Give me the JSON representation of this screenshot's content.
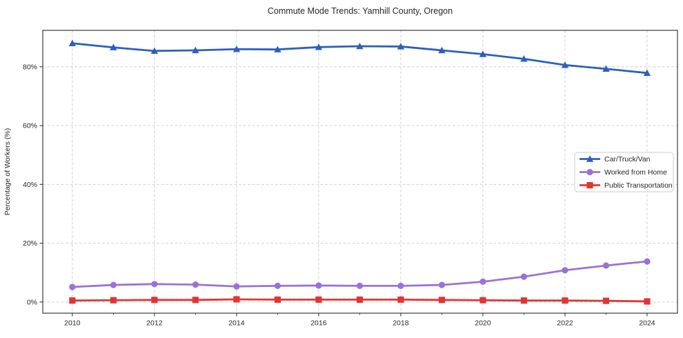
{
  "chart_data": {
    "type": "line",
    "title": "Commute Mode Trends: Yamhill County, Oregon",
    "xlabel": "",
    "ylabel": "Percentage of Workers (%)",
    "x": [
      2010,
      2011,
      2012,
      2013,
      2014,
      2015,
      2016,
      2017,
      2018,
      2019,
      2020,
      2021,
      2022,
      2023,
      2024
    ],
    "series": [
      {
        "name": "Car/Truck/Van",
        "color": "#2d5fbe",
        "marker": "triangle",
        "values": [
          88.0,
          86.6,
          85.4,
          85.6,
          86.0,
          85.9,
          86.7,
          87.0,
          86.9,
          85.6,
          84.3,
          82.7,
          80.6,
          79.3,
          77.9
        ]
      },
      {
        "name": "Worked from Home",
        "color": "#9873d6",
        "marker": "circle",
        "values": [
          5.1,
          5.8,
          6.1,
          5.9,
          5.3,
          5.5,
          5.6,
          5.5,
          5.5,
          5.8,
          6.9,
          8.6,
          10.8,
          12.4,
          13.8
        ]
      },
      {
        "name": "Public Transportation",
        "color": "#e23434",
        "marker": "square",
        "values": [
          0.5,
          0.6,
          0.7,
          0.7,
          0.9,
          0.8,
          0.8,
          0.8,
          0.8,
          0.7,
          0.6,
          0.5,
          0.5,
          0.4,
          0.2
        ]
      }
    ],
    "x_ticks": {
      "major": [
        2010,
        2012,
        2014,
        2016,
        2018,
        2020,
        2022,
        2024
      ],
      "labels": [
        "2010",
        "2012",
        "2014",
        "2016",
        "2018",
        "2020",
        "2022",
        "2024"
      ],
      "minor": [
        2011,
        2013,
        2015,
        2017,
        2019,
        2021,
        2023
      ]
    },
    "y_ticks": {
      "values": [
        0,
        20,
        40,
        60,
        80
      ],
      "labels": [
        "0%",
        "20%",
        "40%",
        "60%",
        "80%"
      ]
    },
    "xlim": [
      2009.28,
      2024.74
    ],
    "ylim": [
      -3.8,
      92.4
    ],
    "grid": true,
    "legend_position": "center right",
    "colors": {
      "grid": "#cccccc",
      "spine": "#262626",
      "text": "#262626",
      "legend_border": "#cccccc",
      "legend_bg": "#ffffff"
    }
  }
}
